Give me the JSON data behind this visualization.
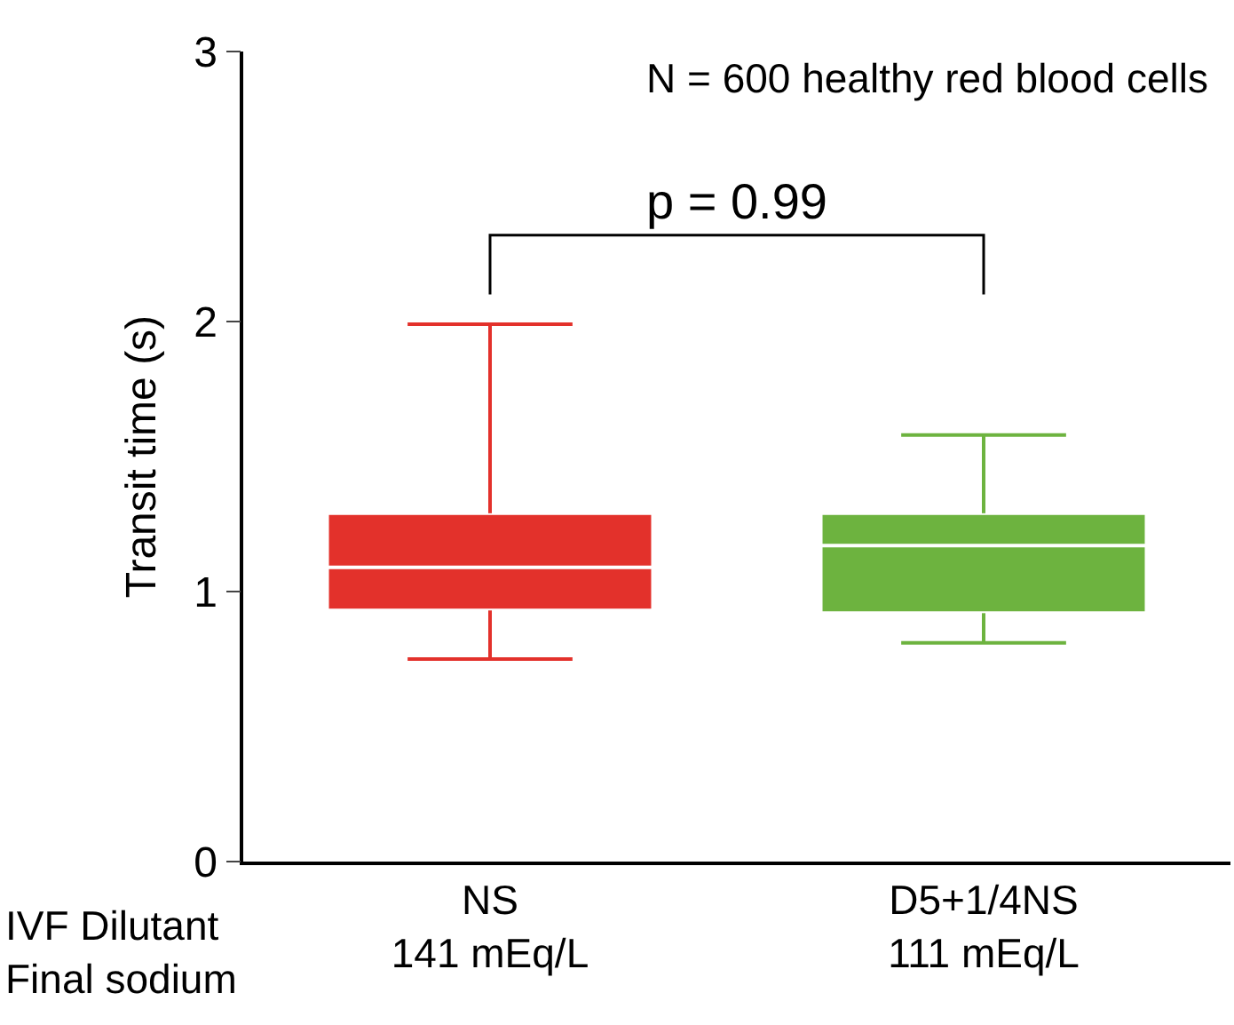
{
  "chart_data": {
    "type": "box",
    "ylabel": "Transit time (s)",
    "categories": [
      "NS\n141 mEq/L",
      "D5+1/4NS\n111 mEq/L"
    ],
    "series": [
      {
        "color": "#e3312b",
        "boxes": [
          {
            "low": 0.75,
            "q1": 0.93,
            "median": 1.09,
            "q3": 1.29,
            "high": 1.99
          },
          null
        ]
      },
      {
        "color": "#6db33f",
        "boxes": [
          null,
          {
            "low": 0.81,
            "q1": 0.92,
            "median": 1.17,
            "q3": 1.29,
            "high": 1.58
          }
        ]
      }
    ],
    "ylim": [
      0,
      3
    ],
    "yticks": [
      0,
      1,
      2,
      3
    ],
    "annotations": [
      "N = 600 healthy red blood cells",
      "p = 0.99",
      "IVF Dilutant\nFinal sodium"
    ]
  }
}
